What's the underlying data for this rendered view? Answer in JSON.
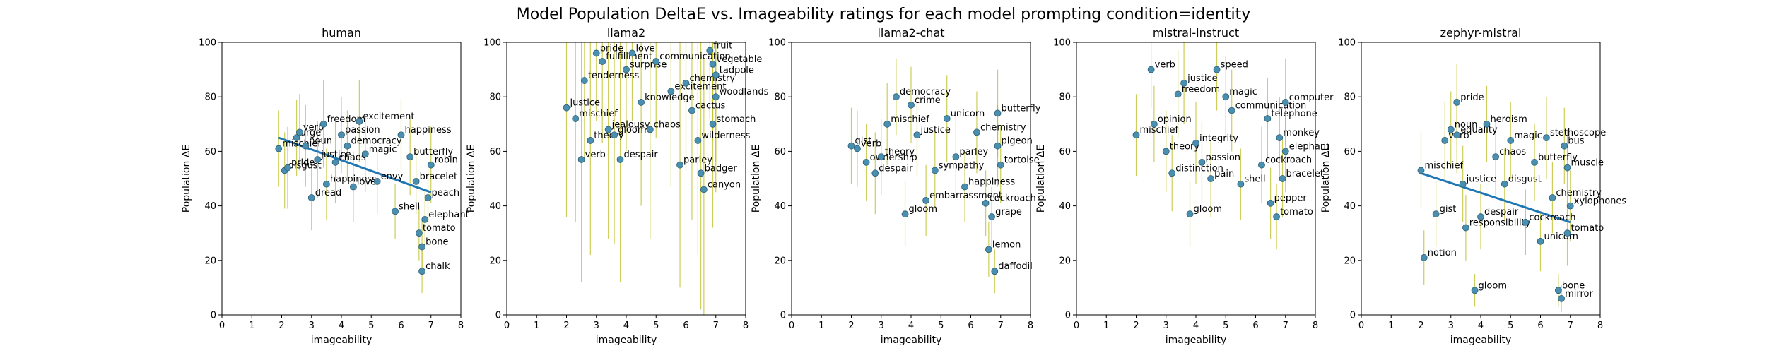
{
  "figure": {
    "suptitle": "Model Population DeltaE vs. Imageability ratings for each model prompting condition=identity"
  },
  "chart_data": [
    {
      "type": "scatter",
      "title": "human",
      "xlabel": "imageability",
      "ylabel": "Population ΔE",
      "xlim": [
        0,
        8
      ],
      "ylim": [
        0,
        100
      ],
      "xticks": [
        "0",
        "1",
        "2",
        "3",
        "4",
        "5",
        "6",
        "7",
        "8"
      ],
      "yticks": [
        "0",
        "20",
        "40",
        "60",
        "80",
        "100"
      ],
      "regression": {
        "x": [
          1.9,
          7.0
        ],
        "y": [
          65,
          45
        ]
      },
      "points": [
        {
          "x": 1.9,
          "y": 61,
          "label": "mischief",
          "err": 14
        },
        {
          "x": 2.1,
          "y": 53,
          "label": "disgust",
          "err": 14
        },
        {
          "x": 2.2,
          "y": 54,
          "label": "pride",
          "err": 15
        },
        {
          "x": 2.5,
          "y": 65,
          "label": "urge",
          "err": 14
        },
        {
          "x": 2.6,
          "y": 67,
          "label": "verb",
          "err": 14
        },
        {
          "x": 2.8,
          "y": 62,
          "label": "noun",
          "err": 15
        },
        {
          "x": 3.0,
          "y": 43,
          "label": "dread",
          "err": 12
        },
        {
          "x": 3.2,
          "y": 57,
          "label": "justice",
          "err": 14
        },
        {
          "x": 3.4,
          "y": 70,
          "label": "freedom",
          "err": 16
        },
        {
          "x": 3.5,
          "y": 48,
          "label": "happiness",
          "err": 13
        },
        {
          "x": 3.8,
          "y": 56,
          "label": "chaos",
          "err": 15
        },
        {
          "x": 4.0,
          "y": 66,
          "label": "passion",
          "err": 14
        },
        {
          "x": 4.2,
          "y": 62,
          "label": "democracy",
          "err": 13
        },
        {
          "x": 4.4,
          "y": 47,
          "label": "love",
          "err": 13
        },
        {
          "x": 4.6,
          "y": 71,
          "label": "excitement",
          "err": 15
        },
        {
          "x": 4.8,
          "y": 59,
          "label": "magic",
          "err": 14
        },
        {
          "x": 5.2,
          "y": 49,
          "label": "envy",
          "err": 12
        },
        {
          "x": 5.8,
          "y": 38,
          "label": "shell",
          "err": 10
        },
        {
          "x": 6.0,
          "y": 66,
          "label": "happiness",
          "err": 13
        },
        {
          "x": 6.3,
          "y": 58,
          "label": "butterfly",
          "err": 14
        },
        {
          "x": 6.5,
          "y": 49,
          "label": "bracelet",
          "err": 12
        },
        {
          "x": 6.6,
          "y": 30,
          "label": "tomato",
          "err": 10
        },
        {
          "x": 6.7,
          "y": 25,
          "label": "bone",
          "err": 10
        },
        {
          "x": 6.7,
          "y": 16,
          "label": "chalk",
          "err": 8
        },
        {
          "x": 6.8,
          "y": 35,
          "label": "elephant",
          "err": 11
        },
        {
          "x": 6.9,
          "y": 43,
          "label": "peach",
          "err": 12
        },
        {
          "x": 7.0,
          "y": 55,
          "label": "robin",
          "err": 14
        }
      ]
    },
    {
      "type": "scatter",
      "title": "llama2",
      "xlabel": "imageability",
      "ylabel": "Population ΔE",
      "xlim": [
        0,
        8
      ],
      "ylim": [
        0,
        100
      ],
      "xticks": [
        "0",
        "1",
        "2",
        "3",
        "4",
        "5",
        "6",
        "7",
        "8"
      ],
      "yticks": [
        "0",
        "20",
        "40",
        "60",
        "80",
        "100"
      ],
      "regression": null,
      "points": [
        {
          "x": 2.0,
          "y": 76,
          "label": "justice",
          "err": 40
        },
        {
          "x": 2.3,
          "y": 72,
          "label": "mischief",
          "err": 38
        },
        {
          "x": 2.5,
          "y": 57,
          "label": "verb",
          "err": 45
        },
        {
          "x": 2.6,
          "y": 86,
          "label": "tenderness",
          "err": 30
        },
        {
          "x": 2.8,
          "y": 64,
          "label": "theory",
          "err": 42
        },
        {
          "x": 3.0,
          "y": 96,
          "label": "pride",
          "err": 25
        },
        {
          "x": 3.2,
          "y": 93,
          "label": "fulfillment",
          "err": 30
        },
        {
          "x": 3.4,
          "y": 68,
          "label": "jealousy",
          "err": 40
        },
        {
          "x": 3.6,
          "y": 66,
          "label": "gloom",
          "err": 40
        },
        {
          "x": 3.8,
          "y": 57,
          "label": "despair",
          "err": 45
        },
        {
          "x": 4.0,
          "y": 90,
          "label": "surprise",
          "err": 30
        },
        {
          "x": 4.2,
          "y": 96,
          "label": "love",
          "err": 25
        },
        {
          "x": 4.5,
          "y": 78,
          "label": "knowledge",
          "err": 38
        },
        {
          "x": 4.8,
          "y": 68,
          "label": "chaos",
          "err": 40
        },
        {
          "x": 5.0,
          "y": 93,
          "label": "communication",
          "err": 28
        },
        {
          "x": 5.5,
          "y": 82,
          "label": "excitement",
          "err": 35
        },
        {
          "x": 5.8,
          "y": 55,
          "label": "parley",
          "err": 45
        },
        {
          "x": 6.0,
          "y": 85,
          "label": "chemistry",
          "err": 32
        },
        {
          "x": 6.2,
          "y": 75,
          "label": "cactus",
          "err": 40
        },
        {
          "x": 6.4,
          "y": 64,
          "label": "wilderness",
          "err": 42
        },
        {
          "x": 6.5,
          "y": 52,
          "label": "badger",
          "err": 50
        },
        {
          "x": 6.6,
          "y": 46,
          "label": "canyon",
          "err": 48
        },
        {
          "x": 6.8,
          "y": 97,
          "label": "fruit",
          "err": 25
        },
        {
          "x": 6.9,
          "y": 92,
          "label": "vegetable",
          "err": 28
        },
        {
          "x": 7.0,
          "y": 88,
          "label": "tadpole",
          "err": 32
        },
        {
          "x": 7.0,
          "y": 80,
          "label": "woodlands",
          "err": 35
        },
        {
          "x": 6.9,
          "y": 70,
          "label": "stomach",
          "err": 38
        }
      ]
    },
    {
      "type": "scatter",
      "title": "llama2-chat",
      "xlabel": "imageability",
      "ylabel": "Population ΔE",
      "xlim": [
        0,
        8
      ],
      "ylim": [
        0,
        100
      ],
      "xticks": [
        "0",
        "1",
        "2",
        "3",
        "4",
        "5",
        "6",
        "7",
        "8"
      ],
      "yticks": [
        "0",
        "20",
        "40",
        "60",
        "80",
        "100"
      ],
      "regression": null,
      "points": [
        {
          "x": 2.0,
          "y": 62,
          "label": "gist",
          "err": 14
        },
        {
          "x": 2.2,
          "y": 61,
          "label": "verb",
          "err": 14
        },
        {
          "x": 2.5,
          "y": 56,
          "label": "ownership",
          "err": 14
        },
        {
          "x": 2.8,
          "y": 52,
          "label": "despair",
          "err": 15
        },
        {
          "x": 3.0,
          "y": 58,
          "label": "theory",
          "err": 14
        },
        {
          "x": 3.2,
          "y": 70,
          "label": "mischief",
          "err": 15
        },
        {
          "x": 3.5,
          "y": 80,
          "label": "democracy",
          "err": 14
        },
        {
          "x": 3.8,
          "y": 37,
          "label": "gloom",
          "err": 12
        },
        {
          "x": 4.0,
          "y": 77,
          "label": "crime",
          "err": 14
        },
        {
          "x": 4.2,
          "y": 66,
          "label": "justice",
          "err": 15
        },
        {
          "x": 4.5,
          "y": 42,
          "label": "embarrassment",
          "err": 13
        },
        {
          "x": 4.8,
          "y": 53,
          "label": "sympathy",
          "err": 14
        },
        {
          "x": 5.2,
          "y": 72,
          "label": "unicorn",
          "err": 16
        },
        {
          "x": 5.5,
          "y": 58,
          "label": "parley",
          "err": 15
        },
        {
          "x": 5.8,
          "y": 47,
          "label": "happiness",
          "err": 13
        },
        {
          "x": 6.2,
          "y": 67,
          "label": "chemistry",
          "err": 15
        },
        {
          "x": 6.5,
          "y": 41,
          "label": "cockroach",
          "err": 12
        },
        {
          "x": 6.6,
          "y": 24,
          "label": "lemon",
          "err": 10
        },
        {
          "x": 6.7,
          "y": 36,
          "label": "grape",
          "err": 11
        },
        {
          "x": 6.8,
          "y": 16,
          "label": "daffodil",
          "err": 8
        },
        {
          "x": 6.9,
          "y": 74,
          "label": "butterfly",
          "err": 16
        },
        {
          "x": 7.0,
          "y": 55,
          "label": "tortoise",
          "err": 14
        },
        {
          "x": 6.9,
          "y": 62,
          "label": "pigeon",
          "err": 15
        }
      ]
    },
    {
      "type": "scatter",
      "title": "mistral-instruct",
      "xlabel": "imageability",
      "ylabel": "Population ΔE",
      "xlim": [
        0,
        8
      ],
      "ylim": [
        0,
        100
      ],
      "xticks": [
        "0",
        "1",
        "2",
        "3",
        "4",
        "5",
        "6",
        "7",
        "8"
      ],
      "yticks": [
        "0",
        "20",
        "40",
        "60",
        "80",
        "100"
      ],
      "regression": null,
      "points": [
        {
          "x": 2.5,
          "y": 90,
          "label": "verb",
          "err": 14
        },
        {
          "x": 2.0,
          "y": 66,
          "label": "mischief",
          "err": 15
        },
        {
          "x": 2.6,
          "y": 70,
          "label": "opinion",
          "err": 14
        },
        {
          "x": 3.0,
          "y": 60,
          "label": "theory",
          "err": 15
        },
        {
          "x": 3.2,
          "y": 52,
          "label": "distinction",
          "err": 14
        },
        {
          "x": 3.4,
          "y": 81,
          "label": "freedom",
          "err": 16
        },
        {
          "x": 3.6,
          "y": 85,
          "label": "justice",
          "err": 15
        },
        {
          "x": 3.8,
          "y": 37,
          "label": "gloom",
          "err": 12
        },
        {
          "x": 4.0,
          "y": 63,
          "label": "integrity",
          "err": 15
        },
        {
          "x": 4.2,
          "y": 56,
          "label": "passion",
          "err": 15
        },
        {
          "x": 4.5,
          "y": 50,
          "label": "pain",
          "err": 14
        },
        {
          "x": 4.7,
          "y": 90,
          "label": "speed",
          "err": 15
        },
        {
          "x": 5.0,
          "y": 80,
          "label": "magic",
          "err": 15
        },
        {
          "x": 5.2,
          "y": 75,
          "label": "communication",
          "err": 15
        },
        {
          "x": 5.5,
          "y": 48,
          "label": "shell",
          "err": 13
        },
        {
          "x": 6.2,
          "y": 55,
          "label": "cockroach",
          "err": 14
        },
        {
          "x": 6.4,
          "y": 72,
          "label": "telephone",
          "err": 15
        },
        {
          "x": 6.5,
          "y": 41,
          "label": "pepper",
          "err": 13
        },
        {
          "x": 6.7,
          "y": 36,
          "label": "tomato",
          "err": 12
        },
        {
          "x": 6.8,
          "y": 65,
          "label": "monkey",
          "err": 15
        },
        {
          "x": 7.0,
          "y": 78,
          "label": "computer",
          "err": 16
        },
        {
          "x": 7.0,
          "y": 60,
          "label": "elephant",
          "err": 15
        },
        {
          "x": 6.9,
          "y": 50,
          "label": "bracelet",
          "err": 14
        }
      ]
    },
    {
      "type": "scatter",
      "title": "zephyr-mistral",
      "xlabel": "imageability",
      "ylabel": "Population ΔE",
      "xlim": [
        0,
        8
      ],
      "ylim": [
        0,
        100
      ],
      "xticks": [
        "0",
        "1",
        "2",
        "3",
        "4",
        "5",
        "6",
        "7",
        "8"
      ],
      "yticks": [
        "0",
        "20",
        "40",
        "60",
        "80",
        "100"
      ],
      "regression": {
        "x": [
          2.0,
          7.0
        ],
        "y": [
          52,
          34
        ]
      },
      "points": [
        {
          "x": 2.1,
          "y": 21,
          "label": "notion",
          "err": 10
        },
        {
          "x": 2.0,
          "y": 53,
          "label": "mischief",
          "err": 14
        },
        {
          "x": 2.5,
          "y": 37,
          "label": "gist",
          "err": 12
        },
        {
          "x": 2.8,
          "y": 64,
          "label": "verb",
          "err": 14
        },
        {
          "x": 3.0,
          "y": 68,
          "label": "noun",
          "err": 14
        },
        {
          "x": 3.2,
          "y": 78,
          "label": "pride",
          "err": 14
        },
        {
          "x": 3.2,
          "y": 66,
          "label": "equality",
          "err": 14
        },
        {
          "x": 3.4,
          "y": 48,
          "label": "justice",
          "err": 14
        },
        {
          "x": 3.5,
          "y": 32,
          "label": "responsibility",
          "err": 12
        },
        {
          "x": 3.8,
          "y": 9,
          "label": "gloom",
          "err": 6
        },
        {
          "x": 4.0,
          "y": 36,
          "label": "despair",
          "err": 12
        },
        {
          "x": 4.2,
          "y": 70,
          "label": "heroism",
          "err": 14
        },
        {
          "x": 4.5,
          "y": 58,
          "label": "chaos",
          "err": 14
        },
        {
          "x": 4.8,
          "y": 48,
          "label": "disgust",
          "err": 13
        },
        {
          "x": 5.0,
          "y": 64,
          "label": "magic",
          "err": 14
        },
        {
          "x": 5.5,
          "y": 34,
          "label": "cockroach",
          "err": 12
        },
        {
          "x": 5.8,
          "y": 56,
          "label": "butterfly",
          "err": 14
        },
        {
          "x": 6.0,
          "y": 27,
          "label": "unicorn",
          "err": 11
        },
        {
          "x": 6.2,
          "y": 65,
          "label": "stethoscope",
          "err": 15
        },
        {
          "x": 6.4,
          "y": 43,
          "label": "chemistry",
          "err": 13
        },
        {
          "x": 6.6,
          "y": 9,
          "label": "bone",
          "err": 6
        },
        {
          "x": 6.7,
          "y": 6,
          "label": "mirror",
          "err": 5
        },
        {
          "x": 6.8,
          "y": 62,
          "label": "bus",
          "err": 14
        },
        {
          "x": 6.9,
          "y": 54,
          "label": "muscle",
          "err": 14
        },
        {
          "x": 7.0,
          "y": 40,
          "label": "xylophones",
          "err": 13
        },
        {
          "x": 6.9,
          "y": 30,
          "label": "tomato",
          "err": 12
        }
      ]
    }
  ]
}
